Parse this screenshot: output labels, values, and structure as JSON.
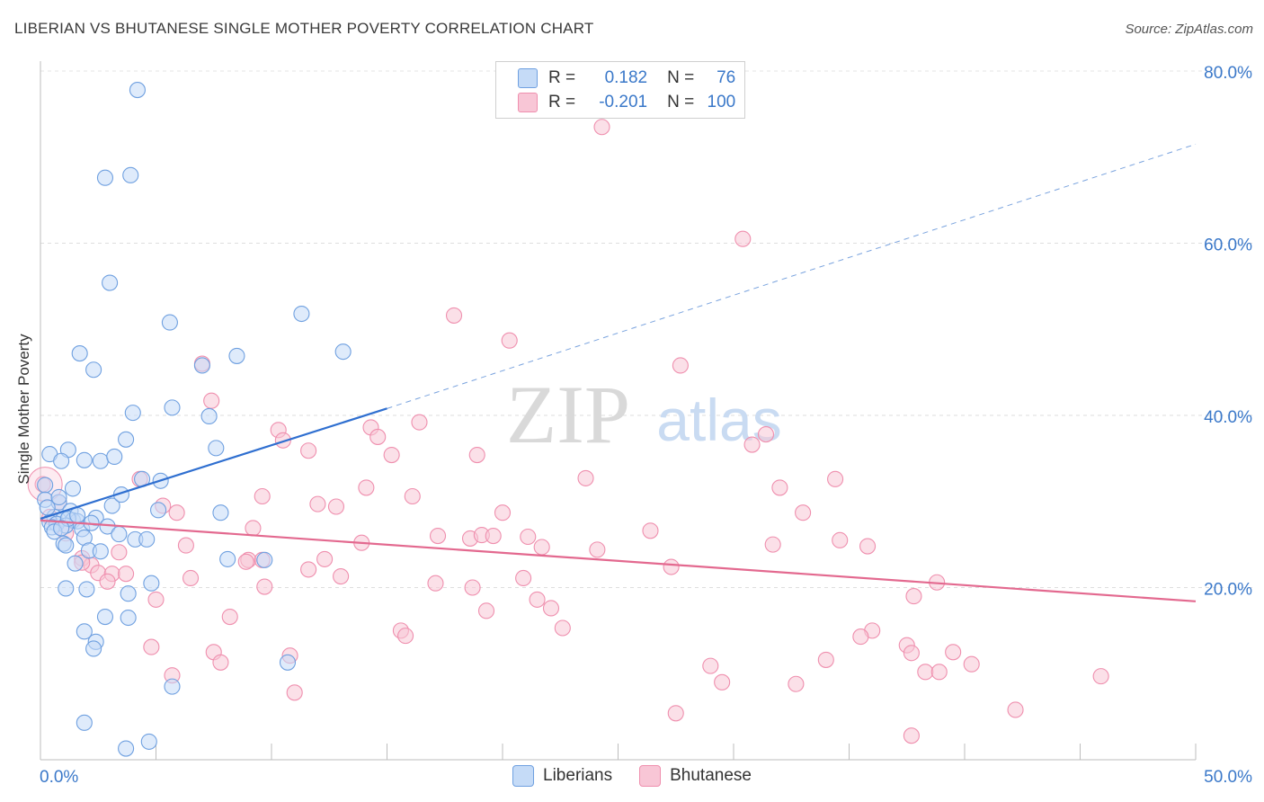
{
  "title": "LIBERIAN VS BHUTANESE SINGLE MOTHER POVERTY CORRELATION CHART",
  "source": "Source: ZipAtlas.com",
  "watermark": {
    "zip": "ZIP",
    "atlas": "atlas"
  },
  "legend": {
    "rows": [
      {
        "r_label": "R =",
        "r_value": "0.182",
        "n_label": "N =",
        "n_value": "76",
        "color": "#6fa0e0"
      },
      {
        "r_label": "R =",
        "r_value": "-0.201",
        "n_label": "N =",
        "n_value": "100",
        "color": "#ef8fae"
      }
    ]
  },
  "chart_data": {
    "type": "scatter",
    "title": "LIBERIAN VS BHUTANESE SINGLE MOTHER POVERTY CORRELATION CHART",
    "xlabel": "",
    "ylabel": "Single Mother Poverty",
    "xlim": [
      0,
      50
    ],
    "ylim": [
      0,
      80
    ],
    "x_tick_labels": [
      "0.0%",
      "50.0%"
    ],
    "y_tick_labels": [
      "20.0%",
      "40.0%",
      "60.0%",
      "80.0%"
    ],
    "y_ticks": [
      20,
      40,
      60,
      80
    ],
    "grid": true,
    "legend_position": "bottom-center",
    "series": [
      {
        "name": "Liberians",
        "color": "#6fa0e0",
        "fill": "#c5dbf7",
        "trend": {
          "x": [
            0,
            15
          ],
          "y": [
            28.0,
            40.8
          ],
          "dashed_to": [
            50,
            71.5
          ]
        },
        "points": [
          [
            4.2,
            77.8
          ],
          [
            3.9,
            67.9
          ],
          [
            2.8,
            67.6
          ],
          [
            3.0,
            55.4
          ],
          [
            11.3,
            51.8
          ],
          [
            5.6,
            50.8
          ],
          [
            13.1,
            47.4
          ],
          [
            1.7,
            47.2
          ],
          [
            8.5,
            46.9
          ],
          [
            7.0,
            45.8
          ],
          [
            2.3,
            45.3
          ],
          [
            4.0,
            40.3
          ],
          [
            5.7,
            40.9
          ],
          [
            7.3,
            39.9
          ],
          [
            3.7,
            37.2
          ],
          [
            7.6,
            36.2
          ],
          [
            1.2,
            36.0
          ],
          [
            0.4,
            35.5
          ],
          [
            1.9,
            34.8
          ],
          [
            2.6,
            34.7
          ],
          [
            0.9,
            34.7
          ],
          [
            3.2,
            35.2
          ],
          [
            5.2,
            32.4
          ],
          [
            4.4,
            32.6
          ],
          [
            1.4,
            31.5
          ],
          [
            0.2,
            31.9
          ],
          [
            0.2,
            30.2
          ],
          [
            0.8,
            29.9
          ],
          [
            1.3,
            28.9
          ],
          [
            3.1,
            29.5
          ],
          [
            7.8,
            28.7
          ],
          [
            2.4,
            28.1
          ],
          [
            0.6,
            28.2
          ],
          [
            1.0,
            28.0
          ],
          [
            1.4,
            27.8
          ],
          [
            1.6,
            27.7
          ],
          [
            0.4,
            27.6
          ],
          [
            0.7,
            27.4
          ],
          [
            1.1,
            27.2
          ],
          [
            2.9,
            27.1
          ],
          [
            0.5,
            27.0
          ],
          [
            1.8,
            26.8
          ],
          [
            0.6,
            26.5
          ],
          [
            3.4,
            26.2
          ],
          [
            1.9,
            25.8
          ],
          [
            4.1,
            25.6
          ],
          [
            4.6,
            25.6
          ],
          [
            1.0,
            25.1
          ],
          [
            1.1,
            24.9
          ],
          [
            2.1,
            24.3
          ],
          [
            2.6,
            24.2
          ],
          [
            8.1,
            23.3
          ],
          [
            9.7,
            23.2
          ],
          [
            1.5,
            22.8
          ],
          [
            4.8,
            20.5
          ],
          [
            1.1,
            19.9
          ],
          [
            2.0,
            19.8
          ],
          [
            3.8,
            19.3
          ],
          [
            2.8,
            16.6
          ],
          [
            3.8,
            16.5
          ],
          [
            1.9,
            14.9
          ],
          [
            2.4,
            13.7
          ],
          [
            2.3,
            12.9
          ],
          [
            10.7,
            11.3
          ],
          [
            5.7,
            8.5
          ],
          [
            1.9,
            4.3
          ],
          [
            3.7,
            1.3
          ],
          [
            4.7,
            2.1
          ],
          [
            1.2,
            28.0
          ],
          [
            0.3,
            29.3
          ],
          [
            0.9,
            26.9
          ],
          [
            2.2,
            27.5
          ],
          [
            1.6,
            28.4
          ],
          [
            3.5,
            30.8
          ],
          [
            0.8,
            30.5
          ],
          [
            5.1,
            29.0
          ]
        ]
      },
      {
        "name": "Bhutanese",
        "color": "#ef8fae",
        "fill": "#f8c6d6",
        "trend": {
          "x": [
            0,
            50
          ],
          "y": [
            27.8,
            18.4
          ]
        },
        "points": [
          [
            24.3,
            73.5
          ],
          [
            30.4,
            60.5
          ],
          [
            17.9,
            51.6
          ],
          [
            20.3,
            48.7
          ],
          [
            27.7,
            45.8
          ],
          [
            7.0,
            46.0
          ],
          [
            7.4,
            41.7
          ],
          [
            16.4,
            39.2
          ],
          [
            14.3,
            38.6
          ],
          [
            10.3,
            38.3
          ],
          [
            14.6,
            37.5
          ],
          [
            31.4,
            37.8
          ],
          [
            10.5,
            37.1
          ],
          [
            11.6,
            35.9
          ],
          [
            30.8,
            36.6
          ],
          [
            15.2,
            35.4
          ],
          [
            18.9,
            35.4
          ],
          [
            4.3,
            32.6
          ],
          [
            23.6,
            32.7
          ],
          [
            34.4,
            32.6
          ],
          [
            32.0,
            31.6
          ],
          [
            14.1,
            31.6
          ],
          [
            16.1,
            30.6
          ],
          [
            9.6,
            30.6
          ],
          [
            12.0,
            29.7
          ],
          [
            12.8,
            29.4
          ],
          [
            5.3,
            29.5
          ],
          [
            20.0,
            28.7
          ],
          [
            5.9,
            28.7
          ],
          [
            33.0,
            28.7
          ],
          [
            0.1,
            32.0
          ],
          [
            0.4,
            28.2
          ],
          [
            1.1,
            26.3
          ],
          [
            9.2,
            26.9
          ],
          [
            26.4,
            26.6
          ],
          [
            17.2,
            26.0
          ],
          [
            18.6,
            25.7
          ],
          [
            19.1,
            26.1
          ],
          [
            19.6,
            26.0
          ],
          [
            21.1,
            25.9
          ],
          [
            34.6,
            25.5
          ],
          [
            35.8,
            24.8
          ],
          [
            31.7,
            25.0
          ],
          [
            21.7,
            24.7
          ],
          [
            6.3,
            24.9
          ],
          [
            13.9,
            25.2
          ],
          [
            24.1,
            24.4
          ],
          [
            3.4,
            24.1
          ],
          [
            9.0,
            23.2
          ],
          [
            9.6,
            23.2
          ],
          [
            12.3,
            23.3
          ],
          [
            1.8,
            23.4
          ],
          [
            27.3,
            22.4
          ],
          [
            2.2,
            22.6
          ],
          [
            11.6,
            22.1
          ],
          [
            2.5,
            21.7
          ],
          [
            3.1,
            21.6
          ],
          [
            3.7,
            21.6
          ],
          [
            6.5,
            21.1
          ],
          [
            13.0,
            21.3
          ],
          [
            20.9,
            21.1
          ],
          [
            38.8,
            20.6
          ],
          [
            17.1,
            20.5
          ],
          [
            18.7,
            20.0
          ],
          [
            9.7,
            20.1
          ],
          [
            2.9,
            20.7
          ],
          [
            37.8,
            19.0
          ],
          [
            5.0,
            18.6
          ],
          [
            21.5,
            18.6
          ],
          [
            22.1,
            17.6
          ],
          [
            19.3,
            17.3
          ],
          [
            8.2,
            16.6
          ],
          [
            22.6,
            15.3
          ],
          [
            36.0,
            15.0
          ],
          [
            15.6,
            15.0
          ],
          [
            15.8,
            14.4
          ],
          [
            35.5,
            14.3
          ],
          [
            37.5,
            13.3
          ],
          [
            4.8,
            13.1
          ],
          [
            37.7,
            12.4
          ],
          [
            39.5,
            12.5
          ],
          [
            7.5,
            12.5
          ],
          [
            10.8,
            12.1
          ],
          [
            34.0,
            11.6
          ],
          [
            7.8,
            11.3
          ],
          [
            40.3,
            11.1
          ],
          [
            29.0,
            10.9
          ],
          [
            38.3,
            10.2
          ],
          [
            38.9,
            10.2
          ],
          [
            5.7,
            9.8
          ],
          [
            45.9,
            9.7
          ],
          [
            29.5,
            9.0
          ],
          [
            32.7,
            8.8
          ],
          [
            11.0,
            7.8
          ],
          [
            27.5,
            5.4
          ],
          [
            42.2,
            5.8
          ],
          [
            37.7,
            2.8
          ],
          [
            1.8,
            22.9
          ],
          [
            8.9,
            23.0
          ],
          [
            0.8,
            29.9
          ]
        ]
      }
    ]
  },
  "bottom_legend": [
    {
      "label": "Liberians",
      "color": "#6fa0e0",
      "fill": "#c5dbf7"
    },
    {
      "label": "Bhutanese",
      "color": "#ef8fae",
      "fill": "#f8c6d6"
    }
  ]
}
